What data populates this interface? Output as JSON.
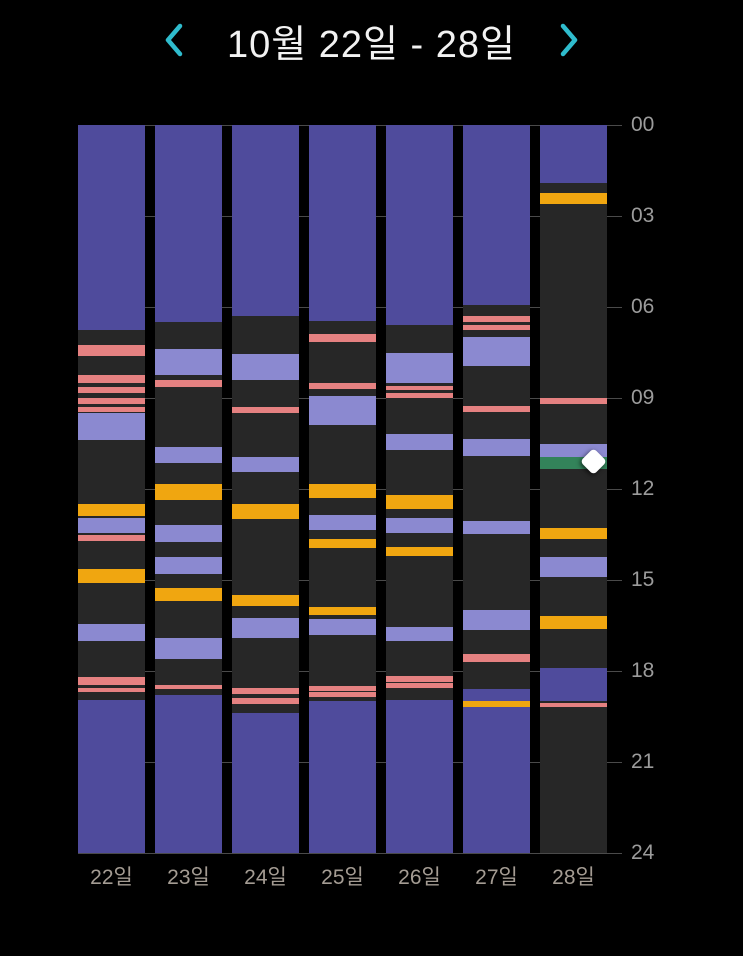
{
  "header": {
    "title": "10월 22일 - 28일",
    "prev_icon": "chevron-left",
    "next_icon": "chevron-right"
  },
  "colors": {
    "background": "#000000",
    "column_bg": "#272727",
    "gridline": "#4a4a4a",
    "axis_text": "#9b9b9b",
    "day_label_text": "#a49c93",
    "title_text": "#f2f2f2",
    "accent": "#2fbccd",
    "purple": "#4f4b9c",
    "lavender": "#8b89d0",
    "pink": "#e58181",
    "orange": "#f0a610",
    "green": "#33835a",
    "marker": "#ffffff"
  },
  "chart_data": {
    "type": "bar",
    "subtype": "stacked-daily-timeline",
    "title": "10월 22일 - 28일",
    "xlabel": "",
    "ylabel": "",
    "grid": true,
    "categories": [
      "22일",
      "23일",
      "24일",
      "25일",
      "26일",
      "27일",
      "28일"
    ],
    "y_axis": {
      "min": 0,
      "max": 24,
      "unit": "hour",
      "ticks": [
        "00",
        "03",
        "06",
        "09",
        "12",
        "15",
        "18",
        "21",
        "24"
      ]
    },
    "columns": [
      {
        "day": "22일",
        "segments": [
          {
            "kind": "purple",
            "start": 0,
            "end": 6.75
          },
          {
            "kind": "pink",
            "start": 7.25,
            "end": 7.6
          },
          {
            "kind": "pink",
            "start": 8.25,
            "end": 8.5
          },
          {
            "kind": "pink",
            "start": 8.65,
            "end": 8.85
          },
          {
            "kind": "pink",
            "start": 9.0,
            "end": 9.2
          },
          {
            "kind": "pink",
            "start": 9.3,
            "end": 9.45
          },
          {
            "kind": "lavender",
            "start": 9.5,
            "end": 10.4
          },
          {
            "kind": "orange",
            "start": 12.5,
            "end": 12.9
          },
          {
            "kind": "lavender",
            "start": 12.95,
            "end": 13.45
          },
          {
            "kind": "pink",
            "start": 13.5,
            "end": 13.7
          },
          {
            "kind": "orange",
            "start": 14.65,
            "end": 15.1
          },
          {
            "kind": "lavender",
            "start": 16.45,
            "end": 17.0
          },
          {
            "kind": "pink",
            "start": 18.2,
            "end": 18.45
          },
          {
            "kind": "pink",
            "start": 18.55,
            "end": 18.7
          },
          {
            "kind": "purple",
            "start": 18.95,
            "end": 24
          }
        ]
      },
      {
        "day": "23일",
        "segments": [
          {
            "kind": "purple",
            "start": 0,
            "end": 6.5
          },
          {
            "kind": "lavender",
            "start": 7.4,
            "end": 8.25
          },
          {
            "kind": "pink",
            "start": 8.4,
            "end": 8.65
          },
          {
            "kind": "lavender",
            "start": 10.6,
            "end": 11.15
          },
          {
            "kind": "orange",
            "start": 11.85,
            "end": 12.35
          },
          {
            "kind": "lavender",
            "start": 13.2,
            "end": 13.75
          },
          {
            "kind": "lavender",
            "start": 14.25,
            "end": 14.8
          },
          {
            "kind": "orange",
            "start": 15.25,
            "end": 15.7
          },
          {
            "kind": "lavender",
            "start": 16.9,
            "end": 17.6
          },
          {
            "kind": "pink",
            "start": 18.45,
            "end": 18.6
          },
          {
            "kind": "purple",
            "start": 18.8,
            "end": 24
          }
        ]
      },
      {
        "day": "24일",
        "segments": [
          {
            "kind": "purple",
            "start": 0,
            "end": 6.3
          },
          {
            "kind": "lavender",
            "start": 7.55,
            "end": 8.4
          },
          {
            "kind": "pink",
            "start": 9.3,
            "end": 9.5
          },
          {
            "kind": "lavender",
            "start": 10.95,
            "end": 11.45
          },
          {
            "kind": "orange",
            "start": 12.5,
            "end": 13.0
          },
          {
            "kind": "orange",
            "start": 15.5,
            "end": 15.85
          },
          {
            "kind": "lavender",
            "start": 16.25,
            "end": 16.9
          },
          {
            "kind": "pink",
            "start": 18.55,
            "end": 18.75
          },
          {
            "kind": "pink",
            "start": 18.9,
            "end": 19.1
          },
          {
            "kind": "purple",
            "start": 19.4,
            "end": 24
          }
        ]
      },
      {
        "day": "25일",
        "segments": [
          {
            "kind": "purple",
            "start": 0,
            "end": 6.45
          },
          {
            "kind": "pink",
            "start": 6.9,
            "end": 7.15
          },
          {
            "kind": "pink",
            "start": 8.5,
            "end": 8.7
          },
          {
            "kind": "lavender",
            "start": 8.95,
            "end": 9.9
          },
          {
            "kind": "orange",
            "start": 11.85,
            "end": 12.3
          },
          {
            "kind": "lavender",
            "start": 12.85,
            "end": 13.35
          },
          {
            "kind": "orange",
            "start": 13.65,
            "end": 13.95
          },
          {
            "kind": "orange",
            "start": 15.9,
            "end": 16.15
          },
          {
            "kind": "lavender",
            "start": 16.3,
            "end": 16.8
          },
          {
            "kind": "pink",
            "start": 18.5,
            "end": 18.65
          },
          {
            "kind": "pink",
            "start": 18.7,
            "end": 18.85
          },
          {
            "kind": "purple",
            "start": 19.0,
            "end": 24
          }
        ]
      },
      {
        "day": "26일",
        "segments": [
          {
            "kind": "purple",
            "start": 0,
            "end": 6.6
          },
          {
            "kind": "lavender",
            "start": 7.5,
            "end": 8.5
          },
          {
            "kind": "pink",
            "start": 8.6,
            "end": 8.75
          },
          {
            "kind": "pink",
            "start": 8.85,
            "end": 9.0
          },
          {
            "kind": "lavender",
            "start": 10.2,
            "end": 10.7
          },
          {
            "kind": "orange",
            "start": 12.2,
            "end": 12.65
          },
          {
            "kind": "lavender",
            "start": 12.95,
            "end": 13.45
          },
          {
            "kind": "orange",
            "start": 13.9,
            "end": 14.2
          },
          {
            "kind": "lavender",
            "start": 16.55,
            "end": 17.0
          },
          {
            "kind": "pink",
            "start": 18.15,
            "end": 18.35
          },
          {
            "kind": "pink",
            "start": 18.4,
            "end": 18.55
          },
          {
            "kind": "purple",
            "start": 18.95,
            "end": 24
          }
        ]
      },
      {
        "day": "27일",
        "segments": [
          {
            "kind": "purple",
            "start": 0,
            "end": 5.95
          },
          {
            "kind": "pink",
            "start": 6.3,
            "end": 6.5
          },
          {
            "kind": "pink",
            "start": 6.6,
            "end": 6.75
          },
          {
            "kind": "lavender",
            "start": 7.0,
            "end": 7.95
          },
          {
            "kind": "pink",
            "start": 9.25,
            "end": 9.45
          },
          {
            "kind": "lavender",
            "start": 10.35,
            "end": 10.9
          },
          {
            "kind": "lavender",
            "start": 13.05,
            "end": 13.5
          },
          {
            "kind": "lavender",
            "start": 16.0,
            "end": 16.65
          },
          {
            "kind": "pink",
            "start": 17.45,
            "end": 17.7
          },
          {
            "kind": "purple",
            "start": 18.6,
            "end": 19.0
          },
          {
            "kind": "orange",
            "start": 19.0,
            "end": 19.2
          },
          {
            "kind": "purple",
            "start": 19.2,
            "end": 24
          }
        ]
      },
      {
        "day": "28일",
        "segments": [
          {
            "kind": "purple",
            "start": 0,
            "end": 1.9
          },
          {
            "kind": "orange",
            "start": 2.25,
            "end": 2.6
          },
          {
            "kind": "pink",
            "start": 9.0,
            "end": 9.2
          },
          {
            "kind": "lavender",
            "start": 10.5,
            "end": 10.95
          },
          {
            "kind": "green",
            "start": 10.95,
            "end": 11.35
          },
          {
            "kind": "orange",
            "start": 13.3,
            "end": 13.65
          },
          {
            "kind": "lavender",
            "start": 14.25,
            "end": 14.9
          },
          {
            "kind": "orange",
            "start": 16.2,
            "end": 16.6
          },
          {
            "kind": "purple",
            "start": 17.9,
            "end": 19.0
          },
          {
            "kind": "pink",
            "start": 19.05,
            "end": 19.2
          }
        ]
      }
    ],
    "marker": {
      "day": "28일",
      "hour": 11.1,
      "icon": "diamond-marker"
    }
  }
}
